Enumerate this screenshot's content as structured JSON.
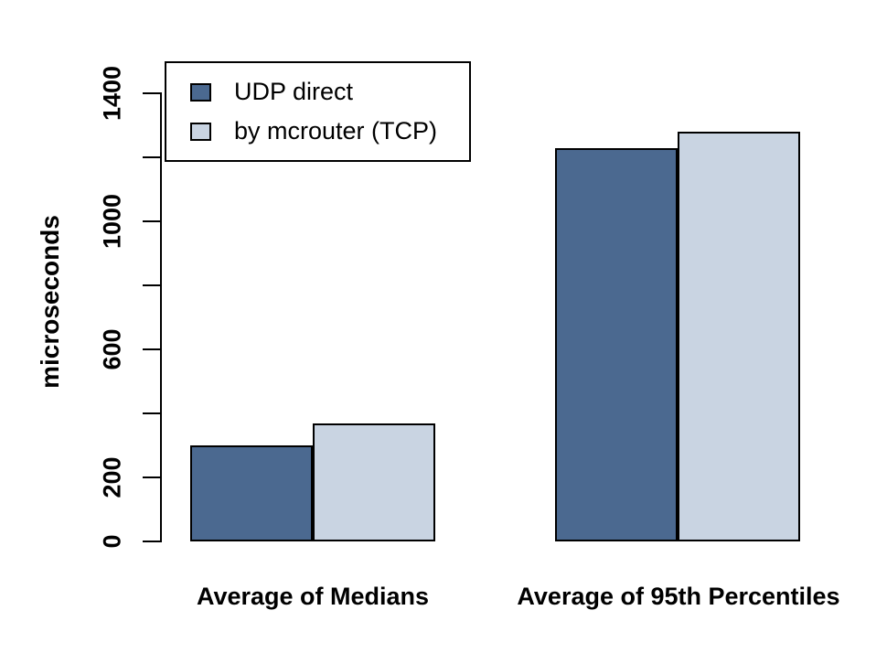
{
  "chart_data": {
    "type": "bar",
    "title": "",
    "categories": [
      "Average of Medians",
      "Average of 95th Percentiles"
    ],
    "series": [
      {
        "name": "UDP direct",
        "color": "#4B6990",
        "values": [
          300,
          1230
        ]
      },
      {
        "name": "by mcrouter (TCP)",
        "color": "#C9D4E2",
        "values": [
          370,
          1280
        ]
      }
    ],
    "xlabel": "",
    "ylabel": "microseconds",
    "ylim": [
      0,
      1400
    ],
    "yticks": [
      0,
      200,
      400,
      600,
      800,
      1000,
      1200,
      1400
    ],
    "ytick_labels": [
      "0",
      "200",
      "",
      "600",
      "",
      "1000",
      "",
      "1400"
    ],
    "grid": false,
    "legend_position": "top-left",
    "bar_border_color": "#000000",
    "background_color": "#ffffff",
    "text_color": "#000000"
  }
}
